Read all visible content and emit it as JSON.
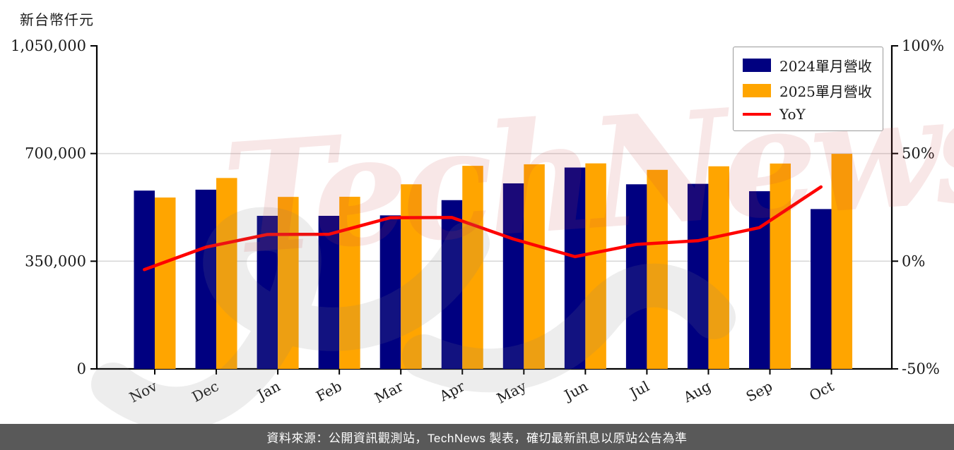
{
  "page": {
    "y_axis_title": "新台幣仟元",
    "watermark_text": "TechNews",
    "footer_text": "資料來源：公開資訊觀測站，TechNews 製表，確切最新訊息以原站公告為準"
  },
  "colors": {
    "bar_2024": "#000080",
    "bar_2025": "#FFA500",
    "yoy_line": "#FF0000",
    "grid": "#D9D9D9",
    "axis": "#000000",
    "tick_label": "#1a1a1a",
    "footer_bg": "#595959",
    "watermark_pink": "rgba(203,73,73,0.13)",
    "watermark_gray": "rgba(128,128,128,0.14)"
  },
  "chart_data": {
    "type": "bar",
    "subtype": "grouped bars with YoY line on secondary axis",
    "title": "",
    "ylabel_left": "新台幣仟元",
    "categories": [
      "Nov",
      "Dec",
      "Jan",
      "Feb",
      "Mar",
      "Apr",
      "May",
      "Jun",
      "Jul",
      "Aug",
      "Sep",
      "Oct"
    ],
    "series": [
      {
        "name": "2024單月營收",
        "type": "bar",
        "axis": "left",
        "color": "#000080",
        "values": [
          579500,
          582500,
          497500,
          497500,
          499000,
          548500,
          603000,
          654500,
          600000,
          601500,
          577500,
          519500
        ]
      },
      {
        "name": "2025單月營收",
        "type": "bar",
        "axis": "left",
        "color": "#FFA500",
        "values": [
          557000,
          620500,
          559000,
          559500,
          600000,
          660000,
          665000,
          668000,
          647000,
          658500,
          667500,
          699000
        ]
      },
      {
        "name": "YoY",
        "type": "line",
        "axis": "right",
        "color": "#FF0000",
        "values": [
          -3.9,
          6.5,
          12.4,
          12.5,
          20.2,
          20.3,
          10.3,
          2.1,
          7.8,
          9.5,
          15.6,
          34.5
        ]
      }
    ],
    "left_axis": {
      "min": 0,
      "max": 1050000,
      "ticks": [
        1050000,
        700000,
        350000,
        0
      ],
      "tick_labels": [
        "1,050,000",
        "700,000",
        "350,000",
        "0"
      ]
    },
    "right_axis": {
      "min": -50,
      "max": 100,
      "unit": "%",
      "ticks": [
        100,
        50,
        0,
        -50
      ],
      "tick_labels": [
        "100%",
        "50%",
        "0%",
        "-50%"
      ]
    },
    "grid": {
      "horizontal_at_left_values": [
        700000,
        350000
      ],
      "vertical": false
    },
    "legend_position": "top-right inside plot"
  }
}
